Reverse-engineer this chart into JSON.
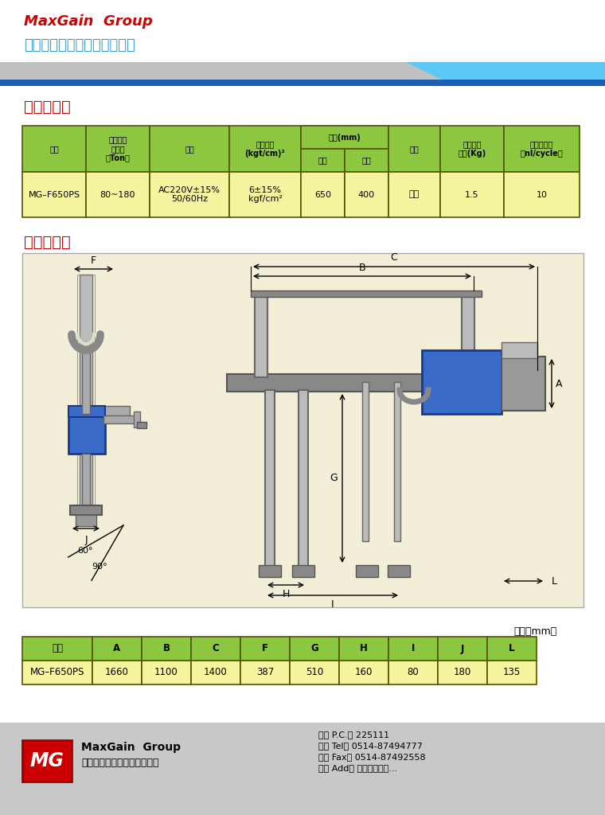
{
  "bg_color": "#ffffff",
  "header_green": "#8dc63f",
  "row_yellow": "#f5f5a0",
  "border_color": "#555500",
  "red_text": "#cc0000",
  "blue_text": "#3399cc",
  "blue_bar": "#1a5fb4",
  "gray_bar": "#c0c0c0",
  "light_blue": "#5bc8f5",
  "company_en": "MaxGain  Group",
  "company_cn": "扬州迈极自动化设备有限公司",
  "section1_title": "技术参数：",
  "section2_title": "尺寸图表：",
  "dim_unit": "单位（mm）",
  "dim_headers": [
    "机型",
    "A",
    "B",
    "C",
    "F",
    "G",
    "H",
    "I",
    "J",
    "L"
  ],
  "dim_row": [
    "MG–F650PS",
    "1660",
    "1100",
    "1400",
    "387",
    "510",
    "160",
    "80",
    "180",
    "135"
  ],
  "tech_row": [
    "MG–F650PS",
    "80~180",
    "AC220V±15%\n50/60Hz",
    "6±15%\nkgf/cm²",
    "650",
    "400",
    "翻转",
    "1.5",
    "10"
  ],
  "footer_pc": "邮编 P.C.： 225111",
  "footer_tel": "电话 Tel： 0514-87494777",
  "footer_fax": "传真 Fax： 0514-87492558",
  "footer_add": "地址 Add： 扬州市那江区..."
}
